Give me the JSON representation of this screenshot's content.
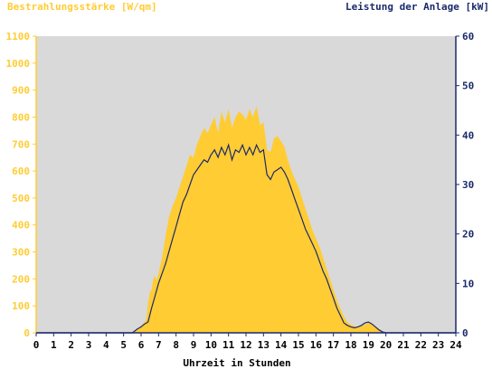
{
  "chart_data": {
    "type": "area",
    "left_axis_label": "Bestrahlungsstärke [W/qm]",
    "right_axis_label": "Leistung der Anlage [kW]",
    "xlabel": "Uhrzeit in Stunden",
    "xlim": [
      0,
      24
    ],
    "ylim_left": [
      0,
      1100
    ],
    "ylim_right": [
      0,
      60
    ],
    "x_ticks": [
      "0",
      "1",
      "2",
      "3",
      "4",
      "5",
      "6",
      "7",
      "8",
      "9",
      "10",
      "11",
      "12",
      "13",
      "14",
      "15",
      "16",
      "17",
      "18",
      "19",
      "20",
      "21",
      "22",
      "23",
      "24"
    ],
    "y_ticks_left": [
      "0",
      "100",
      "200",
      "300",
      "400",
      "500",
      "600",
      "700",
      "800",
      "900",
      "1000",
      "1100"
    ],
    "y_ticks_right": [
      "0",
      "10",
      "20",
      "30",
      "40",
      "50",
      "60"
    ],
    "grid": false,
    "colors": {
      "plot_background": "#d9d9d9",
      "irradiance": "#ffcc33",
      "power": "#1a2a6c",
      "left_axis": "#ffcc33",
      "right_axis": "#1a2a6c"
    },
    "series": [
      {
        "axis": "left",
        "x": [
          0,
          5.5,
          5.8,
          6.0,
          6.2,
          6.3,
          6.4,
          6.5,
          6.6,
          6.7,
          6.8,
          6.9,
          7.0,
          7.2,
          7.4,
          7.6,
          7.8,
          8.0,
          8.2,
          8.4,
          8.6,
          8.8,
          9.0,
          9.2,
          9.4,
          9.6,
          9.8,
          10.0,
          10.2,
          10.4,
          10.6,
          10.8,
          11.0,
          11.2,
          11.4,
          11.6,
          11.8,
          12.0,
          12.2,
          12.4,
          12.6,
          12.8,
          13.0,
          13.2,
          13.4,
          13.6,
          13.8,
          14.0,
          14.2,
          14.4,
          14.6,
          14.8,
          15.0,
          15.2,
          15.4,
          15.6,
          15.8,
          16.0,
          16.2,
          16.4,
          16.6,
          16.8,
          17.0,
          17.2,
          17.4,
          17.6,
          17.8,
          18.0,
          18.2,
          18.4,
          18.6,
          18.8,
          19.0,
          19.2,
          19.4,
          19.6,
          19.8,
          20.0,
          24
        ],
        "values": [
          0,
          0,
          15,
          25,
          40,
          50,
          110,
          150,
          160,
          200,
          210,
          195,
          220,
          280,
          360,
          430,
          470,
          500,
          540,
          580,
          620,
          660,
          650,
          700,
          730,
          760,
          740,
          770,
          800,
          740,
          820,
          780,
          830,
          760,
          800,
          820,
          810,
          790,
          830,
          800,
          840,
          770,
          780,
          680,
          670,
          720,
          730,
          710,
          690,
          640,
          600,
          570,
          540,
          500,
          460,
          420,
          380,
          350,
          320,
          280,
          240,
          200,
          160,
          120,
          90,
          60,
          40,
          30,
          25,
          20,
          25,
          30,
          40,
          35,
          25,
          15,
          5,
          0,
          0
        ]
      },
      {
        "axis": "right",
        "x": [
          0,
          5.5,
          5.8,
          6.0,
          6.2,
          6.4,
          6.6,
          6.8,
          7.0,
          7.2,
          7.4,
          7.6,
          7.8,
          8.0,
          8.2,
          8.4,
          8.6,
          8.8,
          9.0,
          9.2,
          9.4,
          9.6,
          9.8,
          10.0,
          10.2,
          10.4,
          10.6,
          10.8,
          11.0,
          11.2,
          11.4,
          11.6,
          11.8,
          12.0,
          12.2,
          12.4,
          12.6,
          12.8,
          13.0,
          13.2,
          13.4,
          13.6,
          13.8,
          14.0,
          14.2,
          14.4,
          14.6,
          14.8,
          15.0,
          15.2,
          15.4,
          15.6,
          15.8,
          16.0,
          16.2,
          16.4,
          16.6,
          16.8,
          17.0,
          17.2,
          17.4,
          17.6,
          17.8,
          18.0,
          18.2,
          18.4,
          18.6,
          18.8,
          19.0,
          19.2,
          19.4,
          19.6,
          19.8,
          20.0,
          24
        ],
        "values": [
          0,
          0,
          0.8,
          1.2,
          1.8,
          2.2,
          5.0,
          7.5,
          10.0,
          12.0,
          14.0,
          16.5,
          19.0,
          21.5,
          24.0,
          26.5,
          28.0,
          30.0,
          32.0,
          33.0,
          34.0,
          35.0,
          34.5,
          36.0,
          37.0,
          35.5,
          37.5,
          36.0,
          38.0,
          35.0,
          37.0,
          36.5,
          38.0,
          36.0,
          37.5,
          36.0,
          38.0,
          36.5,
          37.0,
          32.0,
          31.0,
          32.5,
          33.0,
          33.5,
          32.5,
          31.0,
          29.0,
          27.0,
          25.0,
          23.0,
          21.0,
          19.5,
          18.0,
          16.5,
          14.5,
          12.5,
          11.0,
          9.0,
          7.0,
          5.0,
          3.5,
          2.0,
          1.5,
          1.2,
          1.0,
          1.2,
          1.5,
          2.0,
          2.2,
          1.8,
          1.2,
          0.6,
          0.2,
          0,
          0
        ]
      }
    ]
  }
}
